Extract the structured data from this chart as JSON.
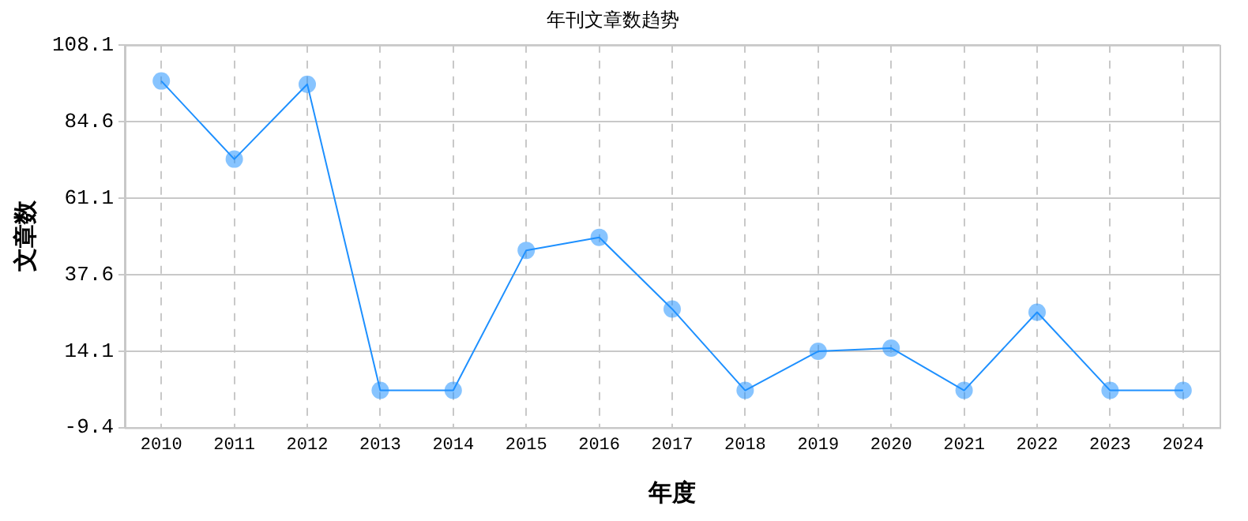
{
  "chart_data": {
    "type": "line",
    "title": "年刊文章数趋势",
    "xlabel": "年度",
    "ylabel": "文章数",
    "categories": [
      "2010",
      "2011",
      "2012",
      "2013",
      "2014",
      "2015",
      "2016",
      "2017",
      "2018",
      "2019",
      "2020",
      "2021",
      "2022",
      "2023",
      "2024"
    ],
    "series": [
      {
        "color": "#1e90ff",
        "values": [
          97,
          73,
          96,
          2,
          2,
          45,
          49,
          27,
          2,
          14,
          15,
          2,
          26,
          2,
          2
        ]
      }
    ],
    "ylim": [
      -9.4,
      108.1
    ],
    "yticks": [
      -9.4,
      14.1,
      37.6,
      61.1,
      84.6,
      108.1
    ],
    "grid": true,
    "legend": false,
    "marker": "circle",
    "line_style": "solid"
  }
}
